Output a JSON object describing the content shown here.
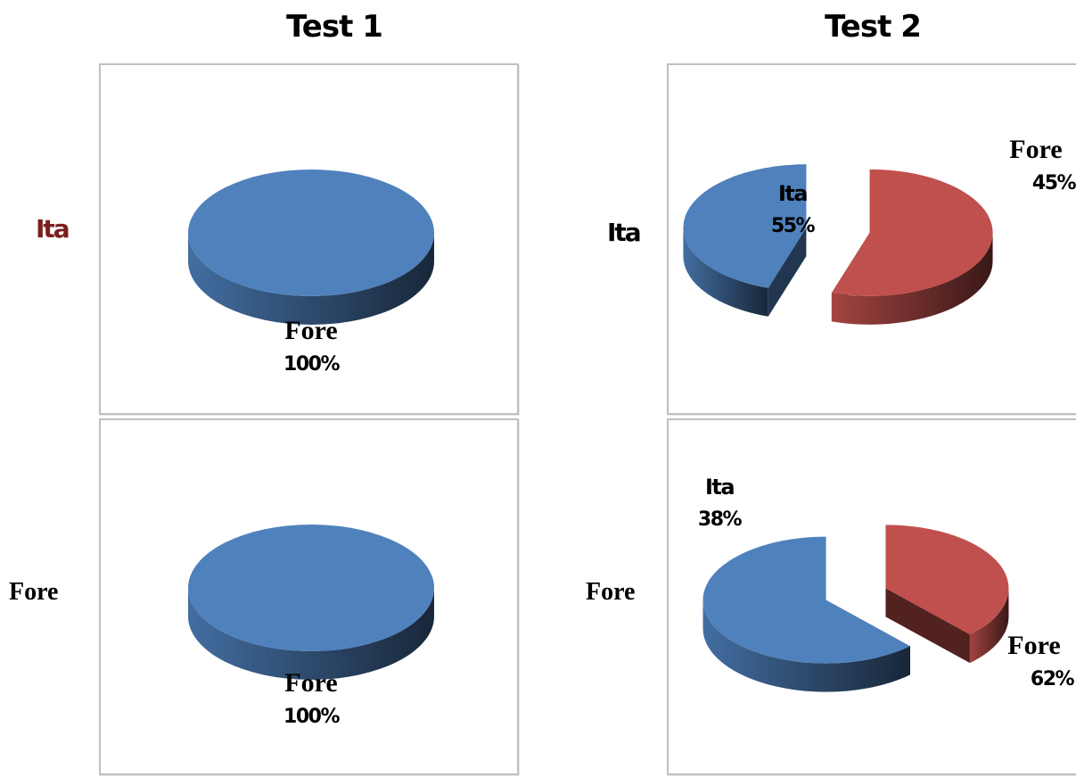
{
  "columns": [
    {
      "title": "Test 1"
    },
    {
      "title": "Test 2"
    }
  ],
  "rows": [
    {
      "label": "Ita"
    },
    {
      "label": "Fore"
    }
  ],
  "colors": {
    "Ita": "#c0504d",
    "Fore": "#4f81bd"
  },
  "chart_data": [
    {
      "type": "pie",
      "test": "Test 1",
      "group": "Ita",
      "exploded": false,
      "categories": [
        "Ita",
        "Fore"
      ],
      "values": [
        0,
        100
      ],
      "data_labels": [
        "",
        "Fore\n100%"
      ]
    },
    {
      "type": "pie",
      "test": "Test 2",
      "group": "Ita",
      "exploded": true,
      "categories": [
        "Ita",
        "Fore"
      ],
      "values": [
        55,
        45
      ],
      "data_labels": [
        "Ita\n55%",
        "Fore\n45%"
      ]
    },
    {
      "type": "pie",
      "test": "Test 1",
      "group": "Fore",
      "exploded": false,
      "categories": [
        "Ita",
        "Fore"
      ],
      "values": [
        0,
        100
      ],
      "data_labels": [
        "",
        "Fore\n100%"
      ]
    },
    {
      "type": "pie",
      "test": "Test 2",
      "group": "Fore",
      "exploded": true,
      "categories": [
        "Ita",
        "Fore"
      ],
      "values": [
        38,
        62
      ],
      "data_labels": [
        "Ita\n38%",
        "Fore\n62%"
      ]
    }
  ]
}
